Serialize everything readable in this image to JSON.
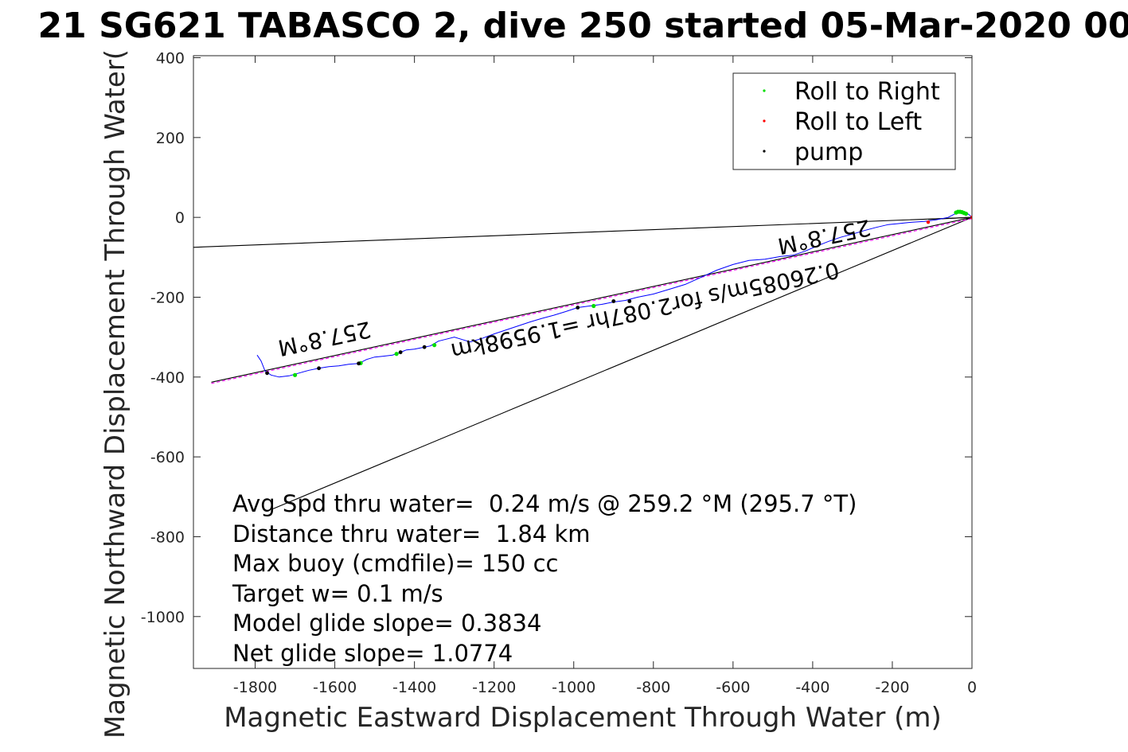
{
  "chart_data": {
    "type": "scatter",
    "title": "21 SG621 TABASCO 2, dive 250 started 05-Mar-2020 00",
    "xlabel": "Magnetic Eastward Displacement Through Water (m)",
    "ylabel": "Magnetic Northward Displacement Through Water(",
    "xlim": [
      -1955,
      0
    ],
    "ylim": [
      -1130,
      405
    ],
    "xticks": [
      -1800,
      -1600,
      -1400,
      -1200,
      -1000,
      -800,
      -600,
      -400,
      -200,
      0
    ],
    "yticks": [
      400,
      200,
      0,
      -200,
      -400,
      -600,
      -800,
      -1000
    ],
    "grid": false,
    "legend": {
      "placement": "top-right",
      "entries": [
        {
          "label": "Roll to Right",
          "color": "#00dd00"
        },
        {
          "label": "Roll to Left",
          "color": "#ff0000"
        },
        {
          "label": "pump",
          "color": "#000000"
        }
      ]
    },
    "track": [
      [
        -1795,
        -345
      ],
      [
        -1785,
        -360
      ],
      [
        -1775,
        -385
      ],
      [
        -1760,
        -395
      ],
      [
        -1740,
        -400
      ],
      [
        -1715,
        -397
      ],
      [
        -1690,
        -390
      ],
      [
        -1665,
        -383
      ],
      [
        -1640,
        -378
      ],
      [
        -1615,
        -374
      ],
      [
        -1590,
        -372
      ],
      [
        -1565,
        -368
      ],
      [
        -1540,
        -366
      ],
      [
        -1520,
        -356
      ],
      [
        -1500,
        -350
      ],
      [
        -1480,
        -348
      ],
      [
        -1455,
        -345
      ],
      [
        -1440,
        -340
      ],
      [
        -1420,
        -332
      ],
      [
        -1400,
        -330
      ],
      [
        -1380,
        -326
      ],
      [
        -1360,
        -322
      ],
      [
        -1340,
        -310
      ],
      [
        -1320,
        -305
      ],
      [
        -1300,
        -300
      ],
      [
        -1280,
        -306
      ],
      [
        -1260,
        -312
      ],
      [
        -1230,
        -303
      ],
      [
        -1200,
        -292
      ],
      [
        -1170,
        -282
      ],
      [
        -1140,
        -272
      ],
      [
        -1110,
        -262
      ],
      [
        -1080,
        -253
      ],
      [
        -1050,
        -245
      ],
      [
        -1020,
        -236
      ],
      [
        -990,
        -226
      ],
      [
        -960,
        -222
      ],
      [
        -930,
        -218
      ],
      [
        -900,
        -212
      ],
      [
        -870,
        -208
      ],
      [
        -840,
        -200
      ],
      [
        -800,
        -192
      ],
      [
        -760,
        -180
      ],
      [
        -720,
        -168
      ],
      [
        -680,
        -150
      ],
      [
        -640,
        -132
      ],
      [
        -600,
        -118
      ],
      [
        -560,
        -108
      ],
      [
        -520,
        -105
      ],
      [
        -480,
        -98
      ],
      [
        -450,
        -95
      ],
      [
        -420,
        -85
      ],
      [
        -390,
        -72
      ],
      [
        -360,
        -60
      ],
      [
        -330,
        -50
      ],
      [
        -300,
        -42
      ],
      [
        -270,
        -33
      ],
      [
        -240,
        -25
      ],
      [
        -210,
        -18
      ],
      [
        -180,
        -15
      ],
      [
        -150,
        -12
      ],
      [
        -120,
        -10
      ],
      [
        -90,
        -6
      ],
      [
        -60,
        0
      ],
      [
        -40,
        10
      ],
      [
        -25,
        15
      ],
      [
        -12,
        10
      ],
      [
        -5,
        5
      ],
      [
        0,
        0
      ]
    ],
    "roll_right_points": [
      [
        -1700,
        -395
      ],
      [
        -1535,
        -365
      ],
      [
        -1445,
        -342
      ],
      [
        -1350,
        -320
      ],
      [
        -950,
        -222
      ],
      [
        -40,
        12
      ],
      [
        -35,
        14
      ],
      [
        -30,
        14
      ],
      [
        -25,
        13
      ],
      [
        -20,
        11
      ],
      [
        -15,
        9
      ]
    ],
    "roll_left_points": [
      [
        -110,
        -12
      ],
      [
        0,
        0
      ]
    ],
    "pump_points": [
      [
        -1770,
        -390
      ],
      [
        -1640,
        -378
      ],
      [
        -1540,
        -366
      ],
      [
        -1435,
        -338
      ],
      [
        -1375,
        -325
      ],
      [
        -990,
        -226
      ],
      [
        -900,
        -210
      ],
      [
        -860,
        -210
      ]
    ],
    "reference_lines": [
      {
        "color": "#000000",
        "points": [
          [
            -1955,
            -75
          ],
          [
            0,
            0
          ]
        ]
      },
      {
        "color": "#000000",
        "points": [
          [
            -1755,
            -730
          ],
          [
            0,
            0
          ]
        ]
      },
      {
        "color": "#000000",
        "points": [
          [
            -1910,
            -413
          ],
          [
            0,
            0
          ]
        ]
      },
      {
        "color": "#ff00ff",
        "dashed": true,
        "points": [
          [
            -1910,
            -416
          ],
          [
            0,
            -3
          ]
        ]
      },
      {
        "color": "#000000",
        "points": [
          [
            -110,
            -5
          ],
          [
            0,
            0
          ]
        ]
      }
    ],
    "annotations": [
      {
        "text": "257.8°M",
        "x": -1630,
        "y": -285,
        "rotate": 168
      },
      {
        "text": "257.8°M",
        "x": -375,
        "y": -30,
        "rotate": 168
      },
      {
        "text": "0.26085m/s for2.087hr =1.9598km",
        "x": -825,
        "y": -215,
        "rotate": 168
      }
    ],
    "stats": [
      "Avg Spd thru water=  0.24 m/s @ 259.2 °M (295.7 °T)",
      "Distance thru water=  1.84 km",
      "Max buoy (cmdfile)= 150 cc",
      "Target w= 0.1 m/s",
      "Model glide slope= 0.3834",
      "Net glide slope= 1.0774"
    ]
  }
}
